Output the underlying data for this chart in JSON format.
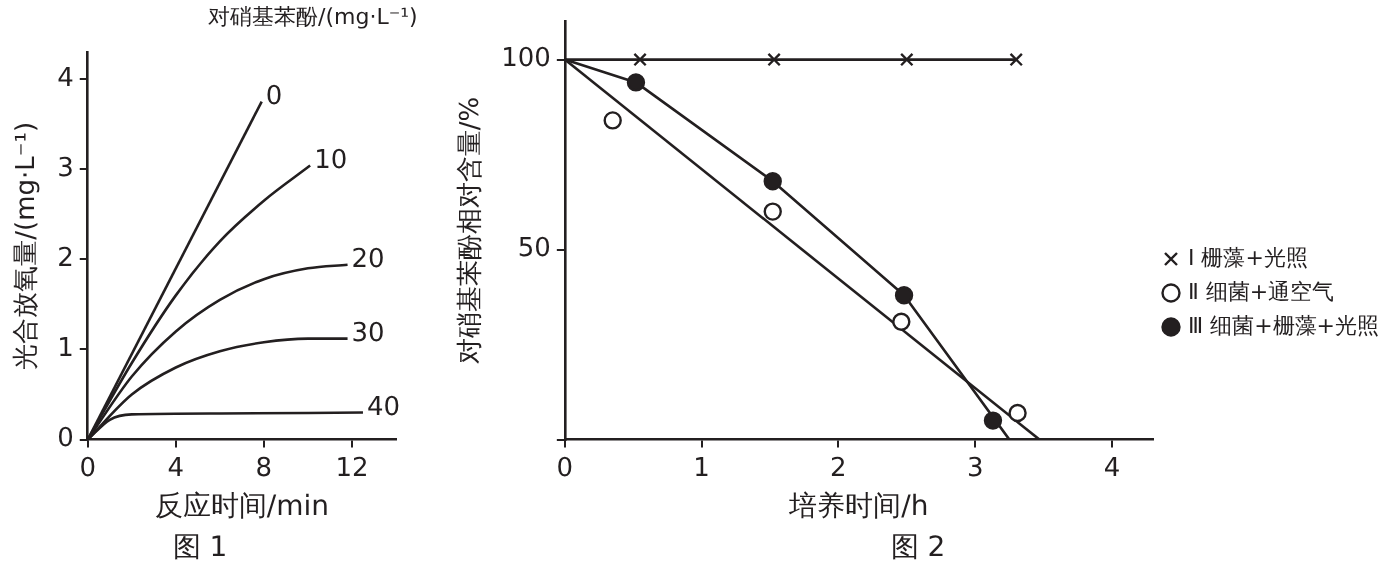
{
  "chart_data": [
    {
      "type": "line",
      "title": "图 1",
      "xlabel": "反应时间/min",
      "ylabel": "光合放氧量/(mg·L⁻¹)",
      "legend_title": "对硝基苯酚/(mg·L⁻¹)",
      "xlim": [
        0,
        14
      ],
      "ylim": [
        0,
        4.3
      ],
      "xticks": [
        0,
        4,
        8,
        12
      ],
      "yticks": [
        0,
        1,
        2,
        3,
        4
      ],
      "grid": false,
      "legend": false,
      "marker": "none",
      "series": [
        {
          "name": "0",
          "color": "#231f20",
          "x": [
            0,
            7.9
          ],
          "values": [
            0,
            3.75
          ]
        },
        {
          "name": "10",
          "color": "#231f20",
          "x": [
            0,
            2,
            4,
            6,
            8,
            10.1
          ],
          "values": [
            0,
            0.85,
            1.6,
            2.2,
            2.65,
            3.04
          ]
        },
        {
          "name": "20",
          "color": "#231f20",
          "x": [
            0,
            2,
            4,
            6,
            8,
            10,
            11.8
          ],
          "values": [
            0,
            0.7,
            1.2,
            1.55,
            1.78,
            1.9,
            1.94
          ]
        },
        {
          "name": "30",
          "color": "#231f20",
          "x": [
            0,
            2,
            4,
            6,
            8,
            10,
            11.8
          ],
          "values": [
            0,
            0.5,
            0.8,
            0.98,
            1.08,
            1.12,
            1.12
          ]
        },
        {
          "name": "40",
          "color": "#231f20",
          "x": [
            0,
            1,
            2,
            6,
            12.5
          ],
          "values": [
            0,
            0.22,
            0.28,
            0.29,
            0.3
          ]
        }
      ]
    },
    {
      "type": "scatter",
      "title": "图 2",
      "xlabel": "培养时间/h",
      "ylabel": "对硝基苯酚相对含量/%",
      "xlim": [
        0,
        4.3
      ],
      "ylim": [
        0,
        110
      ],
      "xticks": [
        0,
        1,
        2,
        3,
        4
      ],
      "yticks": [
        {
          "value": 0,
          "label": null
        },
        50,
        100
      ],
      "grid": false,
      "legend": "right",
      "series": [
        {
          "name": "Ⅰ 栅藻+光照",
          "color": "#231f20",
          "marker": "cross",
          "x": [
            0.55,
            1.53,
            2.5,
            3.3
          ],
          "values": [
            100,
            100,
            100,
            100
          ]
        },
        {
          "name": "Ⅱ 细菌+通空气",
          "color": "#ffffff",
          "marker": "circle",
          "x": [
            0.35,
            1.52,
            2.46,
            3.31
          ],
          "values": [
            84,
            60,
            31,
            7
          ]
        },
        {
          "name": "Ⅲ 细菌+栅藻+光照",
          "color": "#231f20",
          "marker": "circle",
          "x": [
            0.52,
            1.52,
            2.48,
            3.13
          ],
          "values": [
            94,
            68,
            38,
            5
          ]
        },
        {
          "type": "line",
          "color": "#231f20",
          "marker": "none",
          "x": [
            0,
            3.3
          ],
          "values": [
            100,
            100
          ]
        },
        {
          "type": "line",
          "color": "#231f20",
          "marker": "none",
          "x": [
            0,
            3.47
          ],
          "values": [
            100,
            0
          ]
        },
        {
          "type": "line",
          "color": "#231f20",
          "marker": "none",
          "x": [
            0,
            0.52,
            1.52,
            2.48,
            3.25
          ],
          "values": [
            100,
            94,
            68,
            38,
            0
          ]
        }
      ]
    }
  ]
}
